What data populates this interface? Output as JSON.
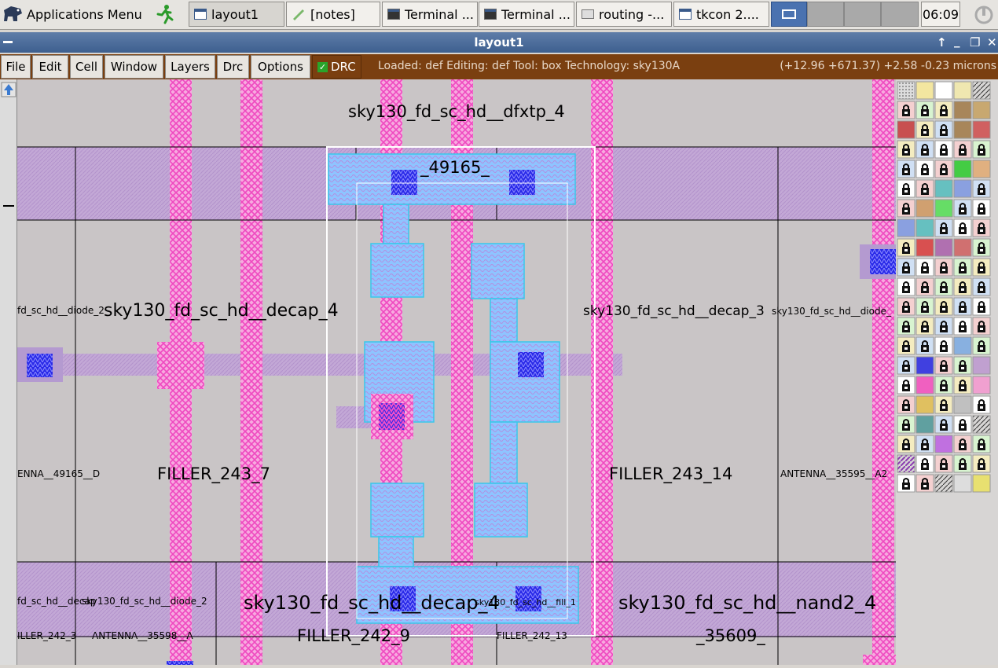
{
  "taskbar": {
    "start_label": "Applications Menu",
    "tasks": [
      {
        "label": "layout1",
        "kind": "window"
      },
      {
        "label": "[notes]",
        "kind": "editor"
      },
      {
        "label": "Terminal ...",
        "kind": "terminal"
      },
      {
        "label": "Terminal ...",
        "kind": "terminal"
      },
      {
        "label": "routing -...",
        "kind": "folder"
      },
      {
        "label": "tkcon 2....",
        "kind": "window"
      }
    ],
    "clock": "06:09"
  },
  "window": {
    "title": "layout1",
    "controls": [
      "↑",
      "_",
      "❐",
      "✕"
    ]
  },
  "menu": {
    "items": [
      "File",
      "Edit",
      "Cell",
      "Window",
      "Layers",
      "Drc",
      "Options"
    ],
    "drc_label": "DRC",
    "drc_checked": true,
    "status": "Loaded: def Editing: def Tool: box  Technology: sky130A",
    "coords": "(+12.96 +671.37) +2.58 -0.23 microns"
  },
  "layout": {
    "cell_labels": [
      "sky130_fd_sc_hd__dfxtp_4",
      "_49165_",
      "fd_sc_hd__diode_2",
      "sky130_fd_sc_hd__decap_4",
      "sky130_fd_sc_hd__decap_3",
      "sky130_fd_sc_hd__diode_",
      "ENNA__49165__D",
      "FILLER_243_7",
      "FILLER_243_14",
      "ANTENNA__35595__A2",
      "fd_sc_hd__decap",
      "sky130_fd_sc_hd__diode_2",
      "sky130_fd_sc_hd__decap_4",
      "sky130_fd_sc_hd__fill_1",
      "sky130_fd_sc_hd__nand2_4",
      "ILLER_242_3",
      "ANTENNA__35598__A",
      "FILLER_242_9",
      "FILLER_242_13",
      "_35609_"
    ]
  },
  "colors": {
    "canvas": "#c9c5c6",
    "metal1": "#c3a8d6",
    "poly": "#f06ac8",
    "li": "#8ec4ff",
    "contact": "#1a1ae0",
    "menubar": "#7a3f10",
    "titlebar": "#4a6a98"
  }
}
